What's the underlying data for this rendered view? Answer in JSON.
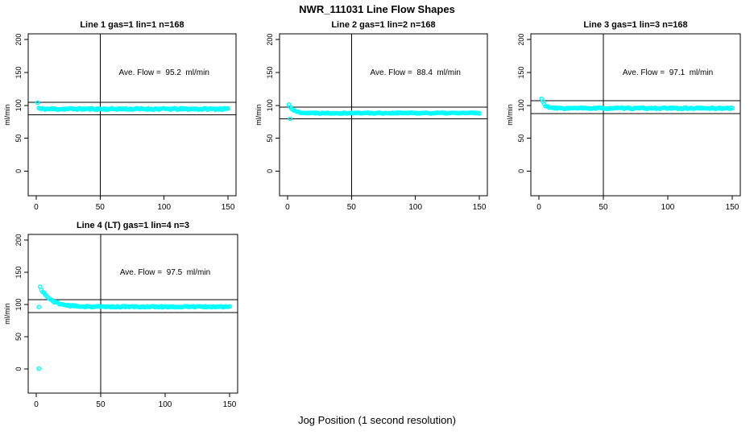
{
  "page": {
    "title": "NWR_111031  Line Flow Shapes",
    "background_color": "#ffffff",
    "point_color": "#00ffff",
    "line_color": "#000000"
  },
  "chart_data": {
    "type": "scatter",
    "title": "NWR_111031  Line Flow Shapes",
    "xlabel": "Jog Position (1 second resolution)",
    "ylabel": "ml/min",
    "x_ticks": [
      0,
      50,
      100,
      150
    ],
    "y_ticks": [
      0,
      50,
      100,
      150,
      200
    ],
    "xlim": [
      0,
      150
    ],
    "ylim": [
      0,
      200
    ],
    "x_range_expanded": [
      -6.24,
      156.24
    ],
    "y_range_expanded": [
      -37.5,
      208.75
    ],
    "marker": "open-circle",
    "grid": false,
    "legend": false,
    "annotation_pos": {
      "x": 100,
      "y": 150
    },
    "panels": [
      {
        "title": "Line 1 gas=1 lin=1 n=168",
        "annotation": "Ave. Flow =  95.2  ml/min",
        "ave_flow": 95.2,
        "vline_x": 50,
        "hlines": [
          104.7,
          85.7
        ],
        "series": {
          "x_start": 1,
          "x_end": 150,
          "initial": 104,
          "steady": 94.5,
          "decay_tau": 0.5,
          "jitter": 1.2,
          "seed": 11
        },
        "outliers": []
      },
      {
        "title": "Line 2 gas=1 lin=2 n=168",
        "annotation": "Ave. Flow =  88.4  ml/min",
        "ave_flow": 88.4,
        "vline_x": 50,
        "hlines": [
          97.2,
          79.6
        ],
        "series": {
          "x_start": 1,
          "x_end": 150,
          "initial": 101,
          "steady": 88.3,
          "decay_tau": 3.5,
          "jitter": 0.8,
          "seed": 22
        },
        "outliers": [
          {
            "x": 2,
            "y": 79.5
          }
        ]
      },
      {
        "title": "Line 3 gas=1 lin=3 n=168",
        "annotation": "Ave. Flow =  97.1  ml/min",
        "ave_flow": 97.1,
        "vline_x": 50,
        "hlines": [
          106.8,
          87.4
        ],
        "series": {
          "x_start": 2,
          "x_end": 150,
          "initial": 110,
          "steady": 95.5,
          "decay_tau": 2.5,
          "jitter": 1.0,
          "seed": 33
        },
        "outliers": []
      },
      {
        "title": "Line 4 (LT) gas=1 lin=4 n=3",
        "annotation": "Ave. Flow =  97.5  ml/min",
        "ave_flow": 97.5,
        "vline_x": 50,
        "hlines": [
          107.3,
          87.8
        ],
        "series": {
          "x_start": 3,
          "x_end": 150,
          "initial": 127,
          "steady": 96.5,
          "decay_tau": 8,
          "jitter": 1.0,
          "seed": 44
        },
        "outliers": [
          {
            "x": 2,
            "y": 96
          },
          {
            "x": 2,
            "y": 0.5
          }
        ]
      }
    ]
  }
}
